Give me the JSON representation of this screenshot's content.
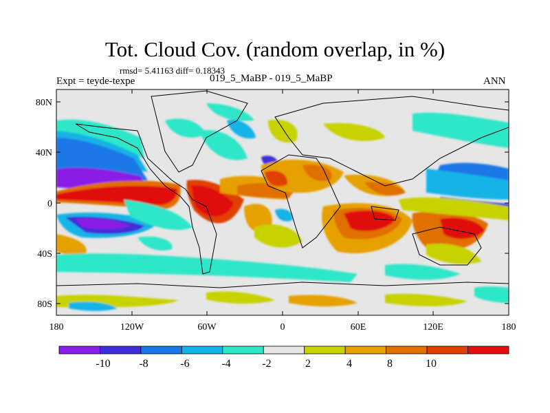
{
  "title": "Tot. Cloud Cov. (random overlap, in %)",
  "stats": "rmsd= 5.41163 diff= 0.18343",
  "experiment": "Expt = teyde-texpe",
  "difference_label": "019_5_MaBP - 019_5_MaBP",
  "season": "ANN",
  "lat_ticks": [
    "80N",
    "40N",
    "0",
    "40S",
    "80S"
  ],
  "lon_ticks": [
    "180",
    "120W",
    "60W",
    "0",
    "60E",
    "120E",
    "180"
  ],
  "colorbar": {
    "labels": [
      "-10",
      "-8",
      "-6",
      "-4",
      "-2",
      "2",
      "4",
      "8",
      "10"
    ],
    "colors": [
      "#8a1fe6",
      "#3f2fd8",
      "#1a78e6",
      "#14b4e6",
      "#2ee6c8",
      "#e6e6e6",
      "#c8d200",
      "#e6a000",
      "#e07000",
      "#e04000",
      "#e01010"
    ]
  }
}
